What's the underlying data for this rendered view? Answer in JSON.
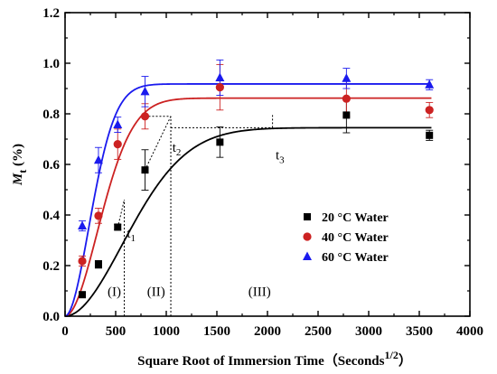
{
  "chart_data": {
    "type": "scatter",
    "xlabel": "Square Root of Immersion Time（Seconds",
    "xlabel_sup": "1/2",
    "xlabel_close": "）",
    "ylabel_main": "M",
    "ylabel_sub": "t",
    "ylabel_unit": " (%)",
    "xlim": [
      0,
      4000
    ],
    "ylim": [
      0.0,
      1.2
    ],
    "x_ticks": [
      0,
      500,
      1000,
      1500,
      2000,
      2500,
      3000,
      3500,
      4000
    ],
    "x_tick_labels": [
      "0",
      "500",
      "1000",
      "1500",
      "2000",
      "2500",
      "3000",
      "3500",
      "4000"
    ],
    "y_ticks": [
      0.0,
      0.2,
      0.4,
      0.6,
      0.8,
      1.0,
      1.2
    ],
    "y_tick_labels": [
      "0.0",
      "0.2",
      "0.4",
      "0.6",
      "0.8",
      "1.0",
      "1.2"
    ],
    "grid": false,
    "legend_position": "center-right",
    "series": [
      {
        "name": "20 °C Water",
        "marker": "square",
        "color": "#000000",
        "fit_color": "#000000",
        "fit_plateau": 0.745,
        "fit_k": 0.0012,
        "points": [
          {
            "x": 170,
            "y": 0.085,
            "err": 0.01
          },
          {
            "x": 330,
            "y": 0.205,
            "err": 0.015
          },
          {
            "x": 520,
            "y": 0.352,
            "err": 0.01
          },
          {
            "x": 790,
            "y": 0.578,
            "err": 0.08
          },
          {
            "x": 1530,
            "y": 0.688,
            "err": 0.06
          },
          {
            "x": 2780,
            "y": 0.795,
            "err": 0.07
          },
          {
            "x": 3600,
            "y": 0.715,
            "err": 0.02
          }
        ]
      },
      {
        "name": "40 °C Water",
        "marker": "circle",
        "color": "#cc2222",
        "fit_color": "#cc2222",
        "fit_plateau": 0.862,
        "fit_k": 0.00215,
        "points": [
          {
            "x": 170,
            "y": 0.218,
            "err": 0.02
          },
          {
            "x": 330,
            "y": 0.397,
            "err": 0.03
          },
          {
            "x": 520,
            "y": 0.68,
            "err": 0.06
          },
          {
            "x": 790,
            "y": 0.79,
            "err": 0.05
          },
          {
            "x": 1530,
            "y": 0.905,
            "err": 0.09
          },
          {
            "x": 2780,
            "y": 0.86,
            "err": 0.07
          },
          {
            "x": 3600,
            "y": 0.815,
            "err": 0.03
          }
        ]
      },
      {
        "name": "60 °C Water",
        "marker": "triangle",
        "color": "#1a1aee",
        "fit_color": "#1a1aee",
        "fit_plateau": 0.918,
        "fit_k": 0.0029,
        "points": [
          {
            "x": 170,
            "y": 0.357,
            "err": 0.02
          },
          {
            "x": 330,
            "y": 0.617,
            "err": 0.05
          },
          {
            "x": 520,
            "y": 0.757,
            "err": 0.03
          },
          {
            "x": 790,
            "y": 0.888,
            "err": 0.06
          },
          {
            "x": 1530,
            "y": 0.943,
            "err": 0.07
          },
          {
            "x": 2780,
            "y": 0.94,
            "err": 0.04
          },
          {
            "x": 3600,
            "y": 0.915,
            "err": 0.02
          }
        ]
      }
    ],
    "annotations": [
      {
        "label": "t",
        "sub": "1",
        "x": 610,
        "y": 0.31
      },
      {
        "label": "t",
        "sub": "2",
        "x": 1060,
        "y": 0.65
      },
      {
        "label": "t",
        "sub": "3",
        "x": 2080,
        "y": 0.62
      }
    ],
    "regions": [
      {
        "label": "(I)",
        "x": 420,
        "y": 0.08
      },
      {
        "label": "(II)",
        "x": 810,
        "y": 0.08
      },
      {
        "label": "(III)",
        "x": 1810,
        "y": 0.08
      }
    ],
    "guide_lines": {
      "vertical_x": [
        585,
        1045
      ],
      "t1_segment": {
        "x0": 585,
        "y_top": 0.46
      },
      "t2_segment": {
        "x0": 1045,
        "y_top": 0.79
      },
      "plateau_20": {
        "y": 0.745,
        "x0": 1045,
        "x1": 2050
      },
      "plateau_40": {
        "y": 0.79,
        "x0": 790,
        "x1": 1045
      },
      "t3_tick": {
        "x": 2050,
        "y0": 0.745,
        "y1": 0.8
      }
    }
  }
}
